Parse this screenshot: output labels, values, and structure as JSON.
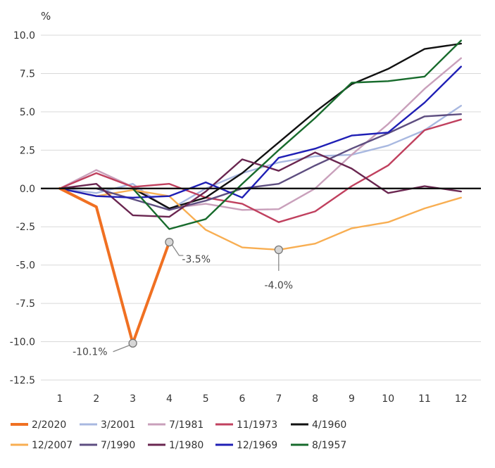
{
  "chart_data": {
    "type": "line",
    "title": "",
    "ylabel": "%",
    "xlabel": "",
    "x": [
      1,
      2,
      3,
      4,
      5,
      6,
      7,
      8,
      9,
      10,
      11,
      12
    ],
    "x_ticks": [
      "1",
      "2",
      "3",
      "4",
      "5",
      "6",
      "7",
      "8",
      "9",
      "10",
      "11",
      "12"
    ],
    "ylim": [
      -12.5,
      10.0
    ],
    "y_ticks": [
      "10.0",
      "7.5",
      "5.0",
      "2.5",
      "0.0",
      "-2.5",
      "-5.0",
      "-7.5",
      "-10.0",
      "-12.5"
    ],
    "y_tick_values": [
      10.0,
      7.5,
      5.0,
      2.5,
      0.0,
      -2.5,
      -5.0,
      -7.5,
      -10.0,
      -12.5
    ],
    "grid": "horizontal",
    "zero_line": true,
    "legend_position": "bottom",
    "series": [
      {
        "name": "2/2020",
        "color": "#F07022",
        "emphasis": true,
        "values": [
          0.0,
          -1.2,
          -10.1,
          -3.5,
          null,
          null,
          null,
          null,
          null,
          null,
          null,
          null
        ]
      },
      {
        "name": "3/2001",
        "color": "#A8B8E0",
        "values": [
          0.0,
          -0.3,
          0.3,
          -1.4,
          0.0,
          1.0,
          1.7,
          2.1,
          2.2,
          2.8,
          3.8,
          5.4
        ]
      },
      {
        "name": "7/1981",
        "color": "#C9A0BB",
        "values": [
          0.0,
          1.2,
          0.1,
          -1.3,
          -1.0,
          -1.4,
          -1.35,
          0.0,
          2.2,
          4.2,
          6.5,
          8.5
        ]
      },
      {
        "name": "11/1973",
        "color": "#C0405E",
        "values": [
          0.0,
          1.0,
          0.1,
          0.3,
          -0.6,
          -1.0,
          -2.2,
          -1.5,
          0.15,
          1.5,
          3.8,
          4.5
        ]
      },
      {
        "name": "4/1960",
        "color": "#111111",
        "values": [
          0.0,
          0.0,
          0.0,
          -1.3,
          -0.6,
          1.0,
          3.0,
          5.0,
          6.8,
          7.8,
          9.1,
          9.45
        ]
      },
      {
        "name": "12/2007",
        "color": "#F8AE52",
        "values": [
          0.0,
          -0.5,
          -0.1,
          -0.5,
          -2.7,
          -3.85,
          -4.0,
          -3.6,
          -2.6,
          -2.2,
          -1.3,
          -0.6
        ]
      },
      {
        "name": "7/1990",
        "color": "#5E4E80",
        "values": [
          0.0,
          0.0,
          -0.7,
          -1.4,
          -0.8,
          0.0,
          0.3,
          1.5,
          2.6,
          3.6,
          4.7,
          4.85
        ]
      },
      {
        "name": "1/1980",
        "color": "#6A2650",
        "values": [
          0.0,
          0.3,
          -1.75,
          -1.85,
          -0.2,
          1.9,
          1.15,
          2.35,
          1.3,
          -0.3,
          0.15,
          -0.2
        ]
      },
      {
        "name": "12/1969",
        "color": "#1F1FB5",
        "values": [
          0.0,
          -0.5,
          -0.6,
          -0.5,
          0.4,
          -0.6,
          2.0,
          2.6,
          3.45,
          3.65,
          5.6,
          7.95
        ]
      },
      {
        "name": "8/1957",
        "color": "#176B2C",
        "values": [
          0.0,
          0.0,
          0.0,
          -2.65,
          -2.0,
          0.3,
          2.5,
          4.6,
          6.9,
          7.0,
          7.3,
          9.65
        ]
      }
    ],
    "annotations": [
      {
        "text": "-10.1%",
        "series": "2/2020",
        "x": 3,
        "y": -10.1
      },
      {
        "text": "-3.5%",
        "series": "2/2020",
        "x": 4,
        "y": -3.5
      },
      {
        "text": "-4.0%",
        "series": "12/2007",
        "x": 7,
        "y": -4.0
      }
    ]
  }
}
